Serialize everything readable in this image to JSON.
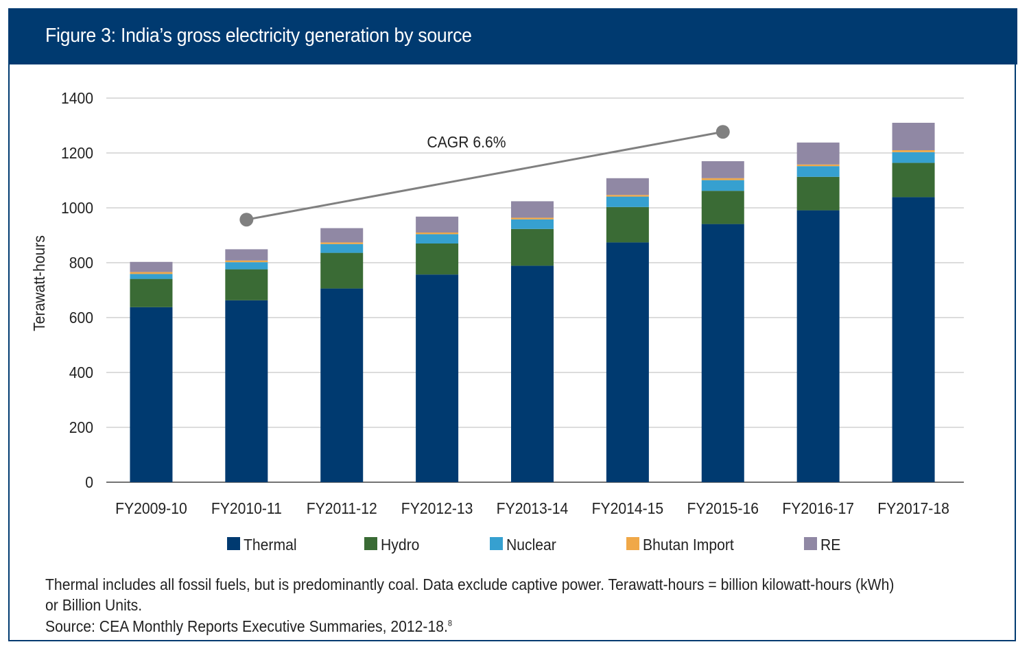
{
  "title": "Figure 3: India’s gross electricity generation by source",
  "notes": {
    "line1": "Thermal includes all fossil fuels, but is predominantly coal. Data exclude captive power. Terawatt-hours = billion kilowatt-hours (kWh)",
    "line2": "or Billion Units.",
    "source": "Source: CEA Monthly Reports Executive Summaries, 2012-18.",
    "source_ref": "8"
  },
  "chart_data": {
    "type": "bar",
    "stacked": true,
    "title": "Figure 3: India’s gross electricity generation by source",
    "xlabel": "",
    "ylabel": "Terawatt-hours",
    "ylim": [
      0,
      1400
    ],
    "yticks": [
      0,
      200,
      400,
      600,
      800,
      1000,
      1200,
      1400
    ],
    "grid": true,
    "legend_position": "bottom",
    "categories": [
      "FY2009-10",
      "FY2010-11",
      "FY2011-12",
      "FY2012-13",
      "FY2013-14",
      "FY2014-15",
      "FY2015-16",
      "FY2016-17",
      "FY2017-18"
    ],
    "series": [
      {
        "name": "Thermal",
        "color": "#003a70",
        "values": [
          638,
          663,
          706,
          757,
          789,
          874,
          941,
          991,
          1039
        ]
      },
      {
        "name": "Hydro",
        "color": "#3a6b35",
        "values": [
          103,
          113,
          130,
          113,
          134,
          129,
          121,
          122,
          125
        ]
      },
      {
        "name": "Nuclear",
        "color": "#36a0d0",
        "values": [
          18,
          26,
          32,
          34,
          35,
          38,
          39,
          39,
          39
        ]
      },
      {
        "name": "Bhutan Import",
        "color": "#f0a848",
        "values": [
          7,
          6,
          6,
          6,
          6,
          6,
          7,
          6,
          7
        ]
      },
      {
        "name": "RE",
        "color": "#9088a4",
        "values": [
          37,
          41,
          52,
          58,
          60,
          61,
          62,
          80,
          100
        ]
      }
    ],
    "annotation": {
      "text": "CAGR 6.6%",
      "from": {
        "x": "FY2010-11",
        "y": 957
      },
      "to": {
        "x": "FY2015-16",
        "y": 1277
      },
      "color": "#808080"
    }
  }
}
